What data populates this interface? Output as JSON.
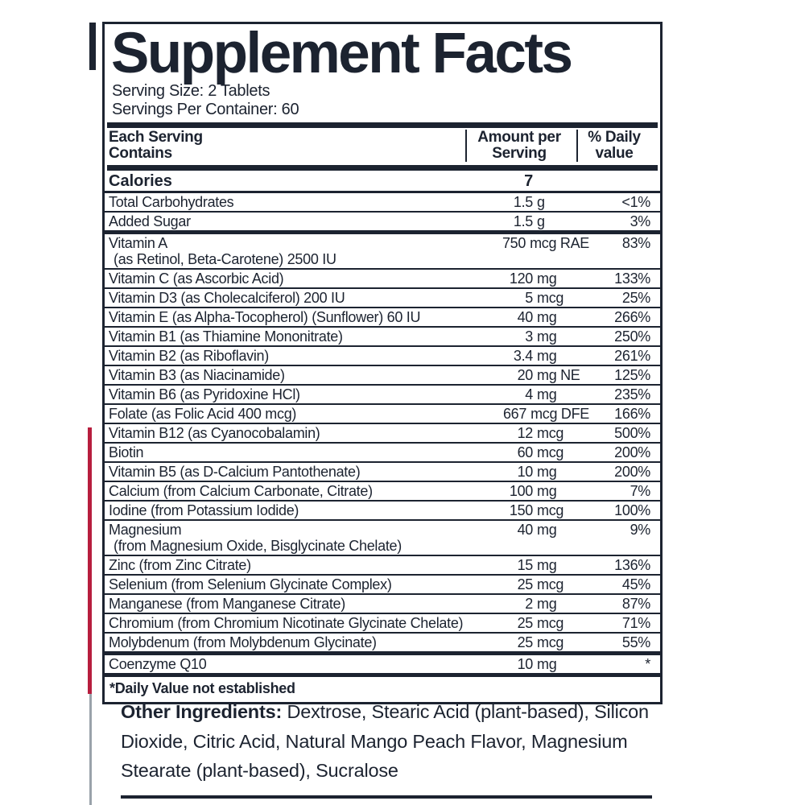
{
  "colors": {
    "ink": "#1c2330",
    "accent_red": "#b71e3e",
    "light_gray": "#9aa2aa"
  },
  "facts": {
    "title": "Supplement Facts",
    "serving_size": "Serving Size: 2 Tablets",
    "servings_per_container": "Servings Per Container: 60",
    "columns": {
      "col1": [
        "Each Serving",
        "Contains"
      ],
      "col2": [
        "Amount per",
        "Serving"
      ],
      "col3": [
        "% Daily",
        "value"
      ]
    },
    "calories": {
      "name": "Calories",
      "value": "7"
    },
    "rows": [
      {
        "name": "Total Carbohydrates",
        "amount": "1.5",
        "unit": "g",
        "dv": "<1%",
        "divider": "thin"
      },
      {
        "name": "Added Sugar",
        "amount": "1.5",
        "unit": "g",
        "dv": "3%",
        "divider": "thick"
      },
      {
        "name": "Vitamin A",
        "name2": "(as Retinol, Beta-Carotene) 2500 IU",
        "amount": "750",
        "unit": "mcg RAE",
        "dv": "83%",
        "divider": "thin"
      },
      {
        "name": "Vitamin C (as Ascorbic Acid)",
        "amount": "120",
        "unit": "mg",
        "dv": "133%",
        "divider": "thin"
      },
      {
        "name": "Vitamin D3 (as Cholecalciferol) 200 IU",
        "amount": "5",
        "unit": "mcg",
        "dv": "25%",
        "divider": "thin"
      },
      {
        "name": "Vitamin E (as Alpha-Tocopherol) (Sunflower) 60 IU",
        "amount": "40",
        "unit": "mg",
        "dv": "266%",
        "divider": "thin"
      },
      {
        "name": "Vitamin B1 (as Thiamine Mononitrate)",
        "amount": "3",
        "unit": "mg",
        "dv": "250%",
        "divider": "thin"
      },
      {
        "name": "Vitamin B2 (as Riboflavin)",
        "amount": "3.4",
        "unit": "mg",
        "dv": "261%",
        "divider": "thin"
      },
      {
        "name": "Vitamin B3 (as Niacinamide)",
        "amount": "20",
        "unit": "mg NE",
        "dv": "125%",
        "divider": "thin"
      },
      {
        "name": "Vitamin B6 (as Pyridoxine HCl)",
        "amount": "4",
        "unit": "mg",
        "dv": "235%",
        "divider": "thin"
      },
      {
        "name": "Folate (as Folic Acid 400 mcg)",
        "amount": "667",
        "unit": "mcg DFE",
        "dv": "166%",
        "divider": "thin"
      },
      {
        "name": "Vitamin B12 (as Cyanocobalamin)",
        "amount": "12",
        "unit": "mcg",
        "dv": "500%",
        "divider": "thin"
      },
      {
        "name": "Biotin",
        "amount": "60",
        "unit": "mcg",
        "dv": "200%",
        "divider": "thin"
      },
      {
        "name": "Vitamin B5 (as D-Calcium Pantothenate)",
        "amount": "10",
        "unit": "mg",
        "dv": "200%",
        "divider": "thin"
      },
      {
        "name": "Calcium (from Calcium Carbonate, Citrate)",
        "amount": "100",
        "unit": "mg",
        "dv": "7%",
        "divider": "thin"
      },
      {
        "name": "Iodine (from Potassium Iodide)",
        "amount": "150",
        "unit": "mcg",
        "dv": "100%",
        "divider": "thin"
      },
      {
        "name": "Magnesium",
        "name2": "(from Magnesium Oxide, Bisglycinate Chelate)",
        "amount": "40",
        "unit": "mg",
        "dv": "9%",
        "divider": "thin"
      },
      {
        "name": "Zinc (from Zinc Citrate)",
        "amount": "15",
        "unit": "mg",
        "dv": "136%",
        "divider": "thin"
      },
      {
        "name": "Selenium (from Selenium Glycinate Complex)",
        "amount": "25",
        "unit": "mcg",
        "dv": "45%",
        "divider": "thin"
      },
      {
        "name": "Manganese (from Manganese Citrate)",
        "amount": "2",
        "unit": "mg",
        "dv": "87%",
        "divider": "thin"
      },
      {
        "name": "Chromium (from Chromium Nicotinate Glycinate Chelate)",
        "amount": "25",
        "unit": "mcg",
        "dv": "71%",
        "divider": "thin"
      },
      {
        "name": "Molybdenum (from Molybdenum Glycinate)",
        "amount": "25",
        "unit": "mcg",
        "dv": "55%",
        "divider": "thick"
      },
      {
        "name": "Coenzyme Q10",
        "amount": "10",
        "unit": "mg",
        "dv": "*",
        "divider": "thick"
      }
    ],
    "footnote": "*Daily Value not established",
    "other_ingredients_label": "Other Ingredients:",
    "other_ingredients_text": "Dextrose, Stearic Acid (plant-based), Silicon Dioxide, Citric Acid, Natural Mango Peach Flavor, Magnesium Stearate (plant-based), Sucralose"
  }
}
